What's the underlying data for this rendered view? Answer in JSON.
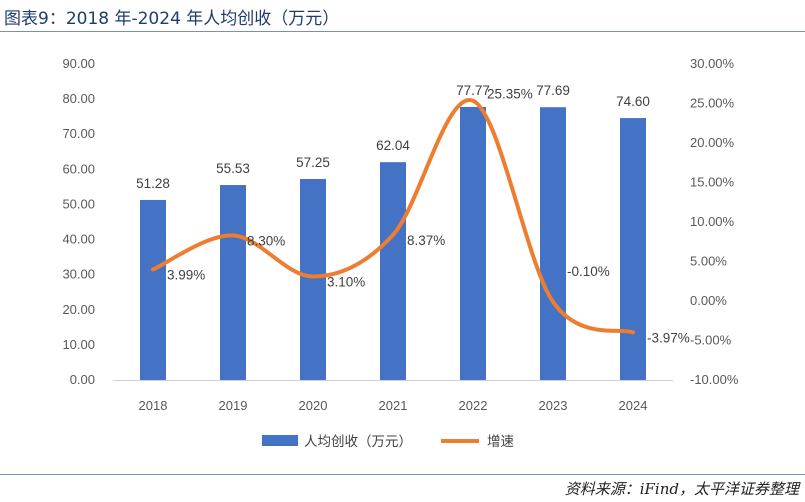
{
  "header": {
    "title": "图表9：2018 年-2024 年人均创收（万元）"
  },
  "footer": {
    "source": "资料来源：iFind，太平洋证券整理"
  },
  "colors": {
    "bar": "#4472c4",
    "line": "#ed7d31"
  },
  "chart_data": {
    "type": "bar",
    "title": "图表9：2018 年-2024 年人均创收（万元）",
    "categories": [
      "2018",
      "2019",
      "2020",
      "2021",
      "2022",
      "2023",
      "2024"
    ],
    "series": [
      {
        "name": "人均创收（万元）",
        "type": "bar",
        "axis": "left",
        "values": [
          51.28,
          55.53,
          57.25,
          62.04,
          77.77,
          77.69,
          74.6
        ],
        "labels": [
          "51.28",
          "55.53",
          "57.25",
          "62.04",
          "77.77",
          "77.69",
          "74.60"
        ]
      },
      {
        "name": "增速",
        "type": "line",
        "axis": "right",
        "values": [
          3.99,
          8.3,
          3.1,
          8.37,
          25.35,
          -0.1,
          -3.97
        ],
        "labels": [
          "3.99%",
          "8.30%",
          "3.10%",
          "8.37%",
          "25.35%",
          "-0.10%",
          "-3.97%"
        ]
      }
    ],
    "y_left": {
      "min": 0,
      "max": 90,
      "ticks": [
        "0.00",
        "10.00",
        "20.00",
        "30.00",
        "40.00",
        "50.00",
        "60.00",
        "70.00",
        "80.00",
        "90.00"
      ]
    },
    "y_right": {
      "min": -10,
      "max": 30,
      "ticks": [
        "-10.00%",
        "-5.00%",
        "0.00%",
        "5.00%",
        "10.00%",
        "15.00%",
        "20.00%",
        "25.00%",
        "30.00%"
      ]
    },
    "grid": false,
    "legend_position": "bottom"
  }
}
